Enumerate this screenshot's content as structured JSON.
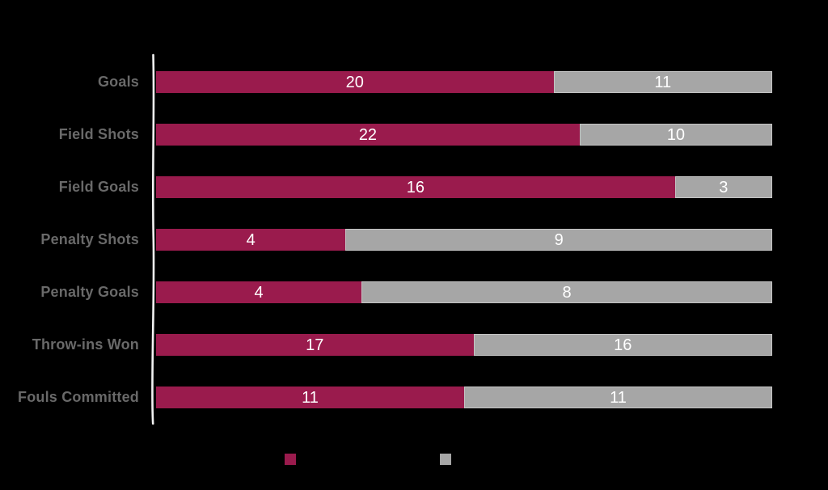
{
  "chart": {
    "background_color": "#000000",
    "axis_color": "#f2f2f2",
    "category_label_color": "#696969",
    "value_label_color": "#ffffff"
  },
  "chart_data": {
    "type": "bar",
    "orientation": "horizontal",
    "stacked": true,
    "normalized_to_full_width": true,
    "title": "",
    "xlabel": "",
    "ylabel": "",
    "grid": false,
    "legend_position": "bottom",
    "value_labels_shown": true,
    "categories": [
      "Goals",
      "Field Shots",
      "Field Goals",
      "Penalty Shots",
      "Penalty Goals",
      "Throw-ins Won",
      "Fouls Committed"
    ],
    "series": [
      {
        "name": "",
        "swatch_color": "#9a1b4d",
        "values": [
          20,
          22,
          16,
          4,
          4,
          17,
          11
        ]
      },
      {
        "name": "",
        "swatch_color": "#a6a6a6",
        "values": [
          11,
          10,
          3,
          9,
          8,
          16,
          11
        ]
      }
    ]
  },
  "legend": {
    "items": [
      {
        "label": "",
        "swatch_color": "#9a1b4d"
      },
      {
        "label": "",
        "swatch_color": "#a6a6a6"
      }
    ]
  },
  "style": {
    "gray_segment_border_color": "#c4c4c4"
  }
}
